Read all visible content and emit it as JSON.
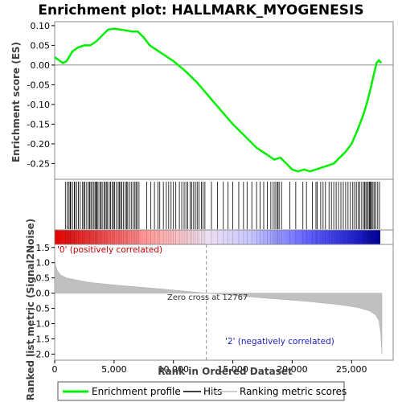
{
  "title": "Enrichment plot: HALLMARK_MYOGENESIS",
  "es_panel": {
    "ylabel": "Enrichment score (ES)",
    "yticks": [
      "0.10",
      "0.05",
      "0.00",
      "-0.05",
      "-0.10",
      "-0.15",
      "-0.20",
      "-0.25"
    ]
  },
  "metric_panel": {
    "ylabel": "Ranked list metric (Signal2Noise)",
    "yticks": [
      "1.5",
      "1.0",
      "0.5",
      "0.0",
      "-0.5",
      "-1.0",
      "-1.5",
      "-2.0"
    ],
    "positive_label": "'0' (positively correlated)",
    "negative_label": "'2' (negatively correlated)",
    "zero_cross_label": "Zero cross at 12767"
  },
  "xaxis": {
    "label": "Rank in Ordered Dataset",
    "ticks": [
      "0",
      "5,000",
      "10,000",
      "15,000",
      "20,000",
      "25,000"
    ]
  },
  "legend": [
    {
      "label": "Enrichment profile",
      "color": "#00ee00"
    },
    {
      "label": "Hits",
      "color": "#000000"
    },
    {
      "label": "Ranking metric scores",
      "color": "#c0c0c0"
    }
  ],
  "chart_data": {
    "type": "line",
    "title": "Enrichment plot: HALLMARK_MYOGENESIS",
    "xlabel": "Rank in Ordered Dataset",
    "xlim": [
      0,
      28500
    ],
    "series": [
      {
        "name": "Enrichment profile",
        "color": "#00ee00",
        "ylim": [
          -0.29,
          0.11
        ],
        "x": [
          0,
          700,
          1000,
          1500,
          2000,
          2500,
          3000,
          3500,
          4000,
          4500,
          5000,
          5500,
          6000,
          6500,
          7000,
          7500,
          8000,
          8500,
          9000,
          10000,
          11000,
          12000,
          13000,
          14000,
          15000,
          16000,
          17000,
          18000,
          18500,
          19000,
          19500,
          20000,
          20500,
          21000,
          21500,
          22000,
          22500,
          23000,
          23500,
          24000,
          24500,
          25000,
          25500,
          26000,
          26300,
          26600,
          26900,
          27100,
          27300,
          27500
        ],
        "y": [
          0.02,
          0.005,
          0.01,
          0.035,
          0.045,
          0.05,
          0.05,
          0.06,
          0.075,
          0.09,
          0.092,
          0.09,
          0.088,
          0.085,
          0.085,
          0.07,
          0.05,
          0.04,
          0.03,
          0.01,
          -0.015,
          -0.045,
          -0.08,
          -0.115,
          -0.15,
          -0.18,
          -0.21,
          -0.23,
          -0.24,
          -0.235,
          -0.25,
          -0.265,
          -0.27,
          -0.265,
          -0.27,
          -0.265,
          -0.26,
          -0.255,
          -0.25,
          -0.235,
          -0.22,
          -0.2,
          -0.165,
          -0.125,
          -0.095,
          -0.06,
          -0.02,
          0.005,
          0.012,
          0.005
        ]
      },
      {
        "name": "Ranking metric scores",
        "color": "#c0c0c0",
        "ylim": [
          -2.2,
          1.6
        ],
        "x": [
          0,
          50,
          200,
          500,
          1000,
          2000,
          3000,
          5000,
          8000,
          10000,
          12767,
          15000,
          18000,
          21000,
          24000,
          25500,
          26500,
          27000,
          27300,
          27450,
          27550
        ],
        "y": [
          1.6,
          0.95,
          0.75,
          0.6,
          0.5,
          0.42,
          0.35,
          0.27,
          0.17,
          0.1,
          0.0,
          -0.07,
          -0.17,
          -0.26,
          -0.38,
          -0.47,
          -0.58,
          -0.7,
          -0.9,
          -1.3,
          -2.0
        ]
      }
    ],
    "hits": [
      900,
      1050,
      1200,
      1300,
      1350,
      1500,
      1650,
      1700,
      1850,
      2000,
      2150,
      2350,
      2450,
      2550,
      2700,
      2850,
      2950,
      3050,
      3150,
      3300,
      3400,
      3500,
      3550,
      3650,
      3800,
      3900,
      4000,
      4150,
      4250,
      4350,
      4450,
      4600,
      4700,
      4850,
      4950,
      5050,
      5200,
      5350,
      5450,
      5550,
      5650,
      5800,
      5950,
      6050,
      6150,
      6300,
      6450,
      6600,
      6750,
      6850,
      6950,
      7100,
      7750,
      8100,
      8400,
      8700,
      8850,
      9150,
      9400,
      9600,
      9800,
      10000,
      10200,
      10500,
      10700,
      10900,
      11050,
      11200,
      11400,
      11550,
      11700,
      11850,
      12000,
      12150,
      12350,
      12500,
      12650,
      13200,
      13700,
      14200,
      14600,
      15000,
      15500,
      15900,
      16200,
      16600,
      17000,
      17300,
      17600,
      17900,
      18200,
      18400,
      18550,
      18700,
      18800,
      18900,
      19100,
      19800,
      20300,
      20900,
      21200,
      21700,
      22000,
      22100,
      22400,
      22600,
      22800,
      23100,
      23300,
      23500,
      23700,
      23900,
      24100,
      24300,
      24500,
      24700,
      24900,
      25100,
      25250,
      25400,
      25550,
      25700,
      25850,
      26000,
      26100,
      26200,
      26300,
      26400,
      26500,
      26550,
      26600,
      26700,
      26800,
      26900,
      27050,
      27200,
      27350
    ],
    "zero_cross": 12767
  }
}
